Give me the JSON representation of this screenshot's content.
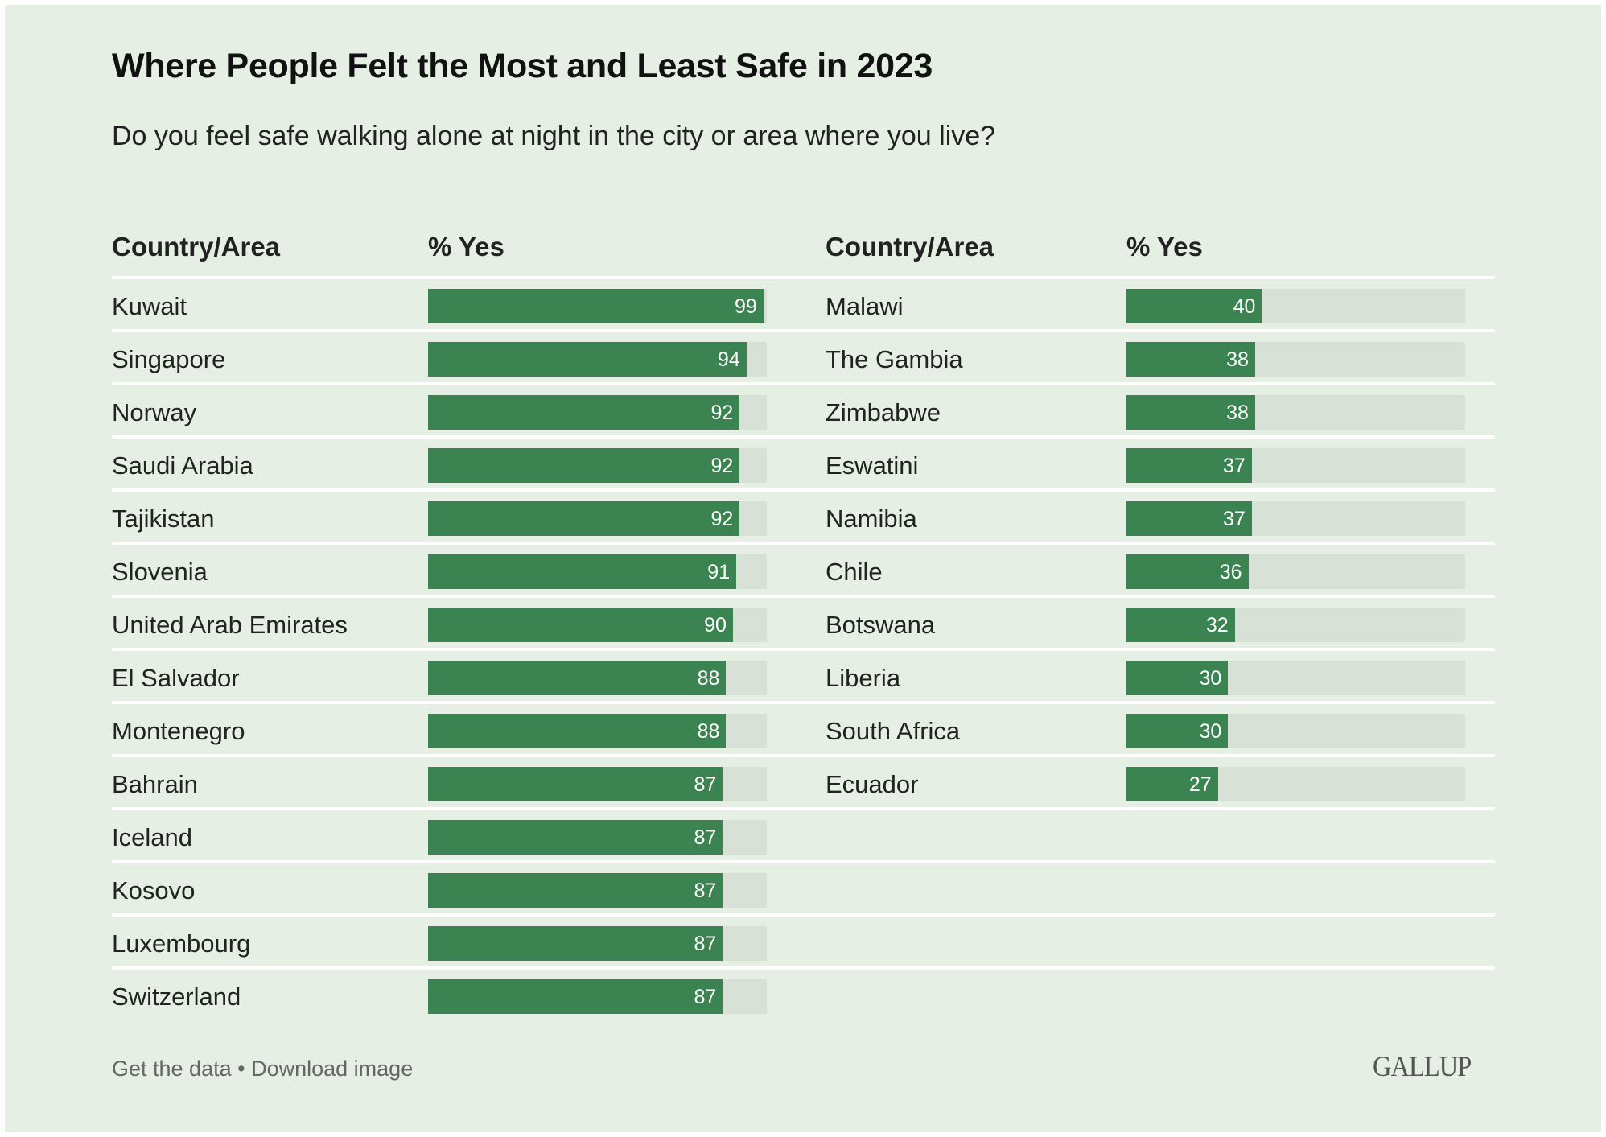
{
  "title": "Where People Felt the Most and Least Safe in 2023",
  "subtitle": "Do you feel safe walking alone at night in the city or area where you live?",
  "footer": {
    "get_data": "Get the data",
    "separator": "•",
    "download": "Download image"
  },
  "logo": "GALLUP",
  "colors": {
    "bar": "#3b8452",
    "track": "#d7e1d5",
    "background": "#e5efe3"
  },
  "chart_data": [
    {
      "type": "bar",
      "orientation": "horizontal",
      "columns": [
        "Country/Area",
        "% Yes"
      ],
      "xlim": [
        0,
        100
      ],
      "categories": [
        "Kuwait",
        "Singapore",
        "Norway",
        "Saudi Arabia",
        "Tajikistan",
        "Slovenia",
        "United Arab Emirates",
        "El Salvador",
        "Montenegro",
        "Bahrain",
        "Iceland",
        "Kosovo",
        "Luxembourg",
        "Switzerland"
      ],
      "values": [
        99,
        94,
        92,
        92,
        92,
        91,
        90,
        88,
        88,
        87,
        87,
        87,
        87,
        87
      ]
    },
    {
      "type": "bar",
      "orientation": "horizontal",
      "columns": [
        "Country/Area",
        "% Yes"
      ],
      "xlim": [
        0,
        100
      ],
      "categories": [
        "Malawi",
        "The Gambia",
        "Zimbabwe",
        "Eswatini",
        "Namibia",
        "Chile",
        "Botswana",
        "Liberia",
        "South Africa",
        "Ecuador"
      ],
      "values": [
        40,
        38,
        38,
        37,
        37,
        36,
        32,
        30,
        30,
        27
      ]
    }
  ]
}
